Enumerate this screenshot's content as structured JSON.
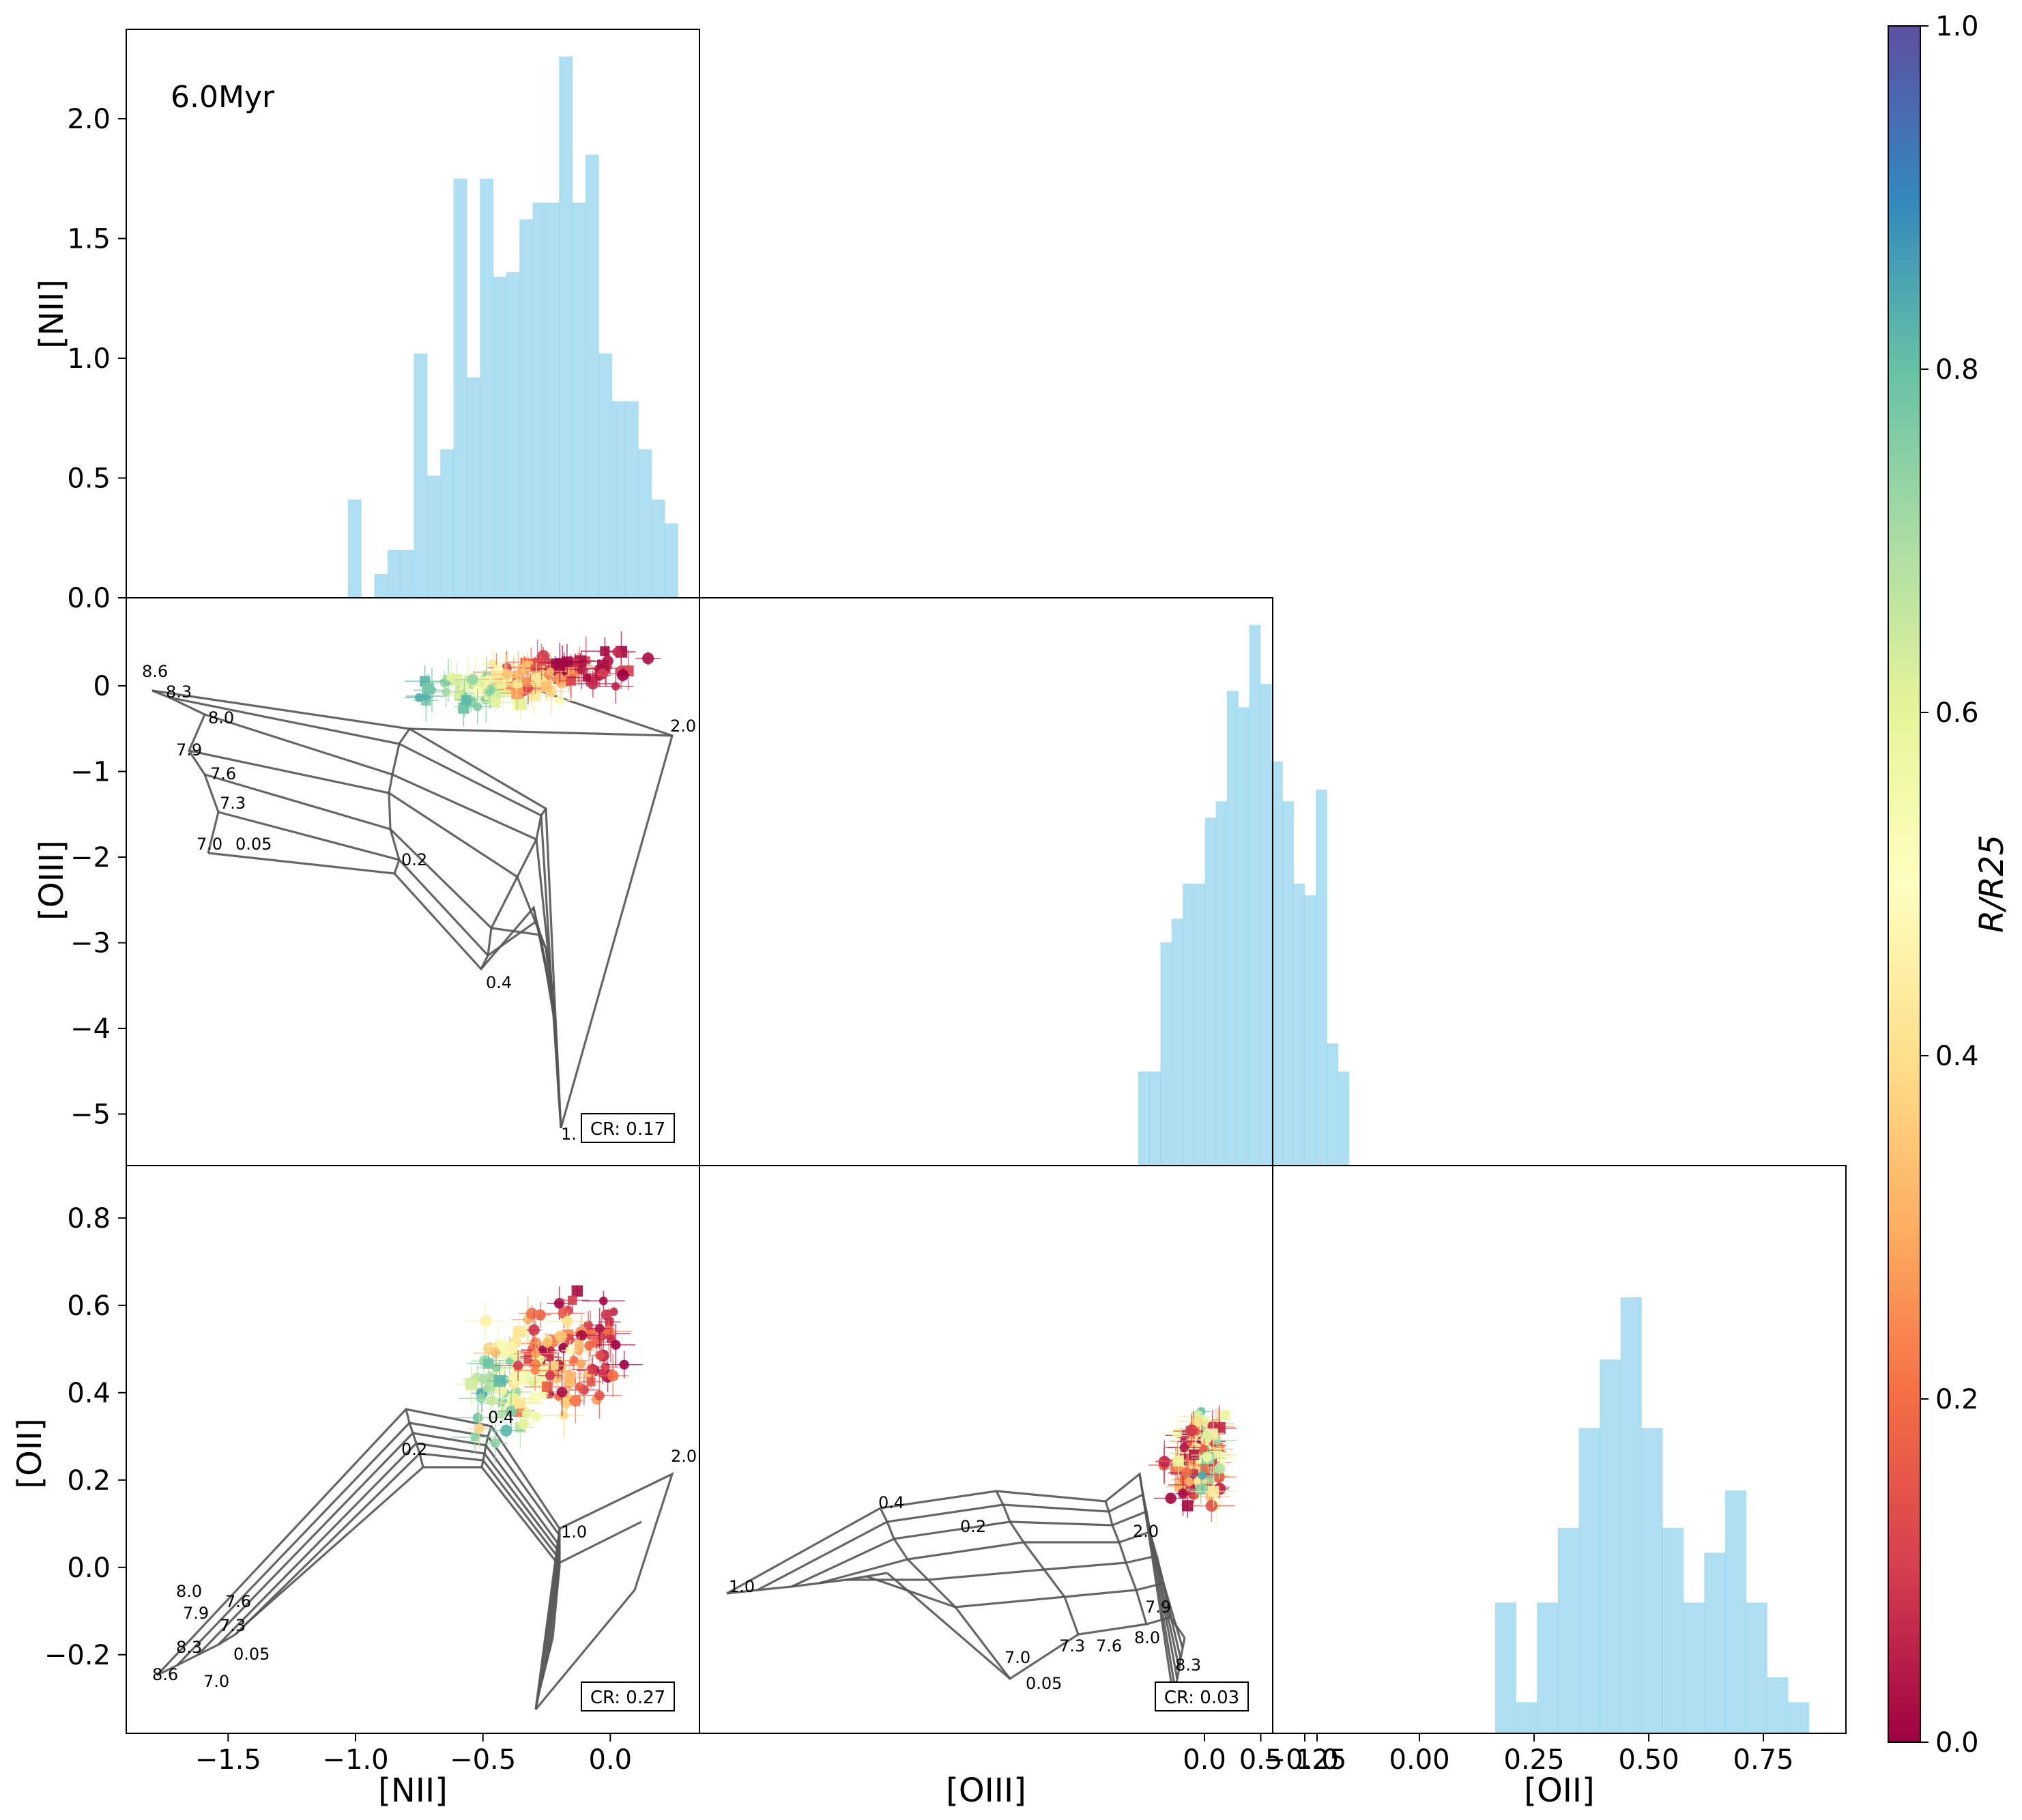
{
  "colorbar": {
    "label": "R/R25",
    "ticks": [
      "0.0",
      "0.2",
      "0.4",
      "0.6",
      "0.8",
      "1.0"
    ],
    "colors": [
      "#9e0142",
      "#d53e4f",
      "#f46d43",
      "#fdae61",
      "#fee08b",
      "#ffffbf",
      "#e6f598",
      "#abdda4",
      "#66c2a5",
      "#3288bd",
      "#5e4fa2"
    ]
  },
  "labels": {
    "age": "6.0Myr",
    "nii": "[NII]",
    "oiii": "[OIII]",
    "oii": "[OII]"
  },
  "chart_data": [
    {
      "id": "hist-nii",
      "type": "bar",
      "ylabel": "[NII]",
      "ylim": [
        0,
        2.3
      ],
      "yticks": [
        "0.0",
        "0.5",
        "1.0",
        "1.5",
        "2.0"
      ],
      "annotation": "6.0Myr",
      "bin_start": -1.03,
      "bin_width": 0.0518,
      "values": [
        0.41,
        0,
        0.1,
        0.2,
        0.2,
        1.02,
        0.51,
        0.62,
        1.75,
        0.92,
        1.75,
        1.34,
        1.36,
        1.58,
        1.65,
        1.65,
        2.26,
        1.65,
        1.85,
        1.02,
        0.82,
        0.82,
        0.62,
        0.41,
        0.31
      ]
    },
    {
      "id": "scatter-nii-oiii",
      "type": "scatter",
      "ylabel": "[OIII]",
      "ylim": [
        -5.4,
        0.5
      ],
      "yticks": [
        "0",
        "−1",
        "−2",
        "−3",
        "−4",
        "−5"
      ],
      "cr": "CR: 0.17",
      "grid_labels": [
        "8.6",
        "8.3",
        "8.0",
        "7.9",
        "7.6",
        "7.3",
        "7.0",
        "0.05",
        "0.2",
        "0.4",
        "1.",
        "2.0"
      ]
    },
    {
      "id": "hist-oiii",
      "type": "bar",
      "ylim": [
        0,
        2.3
      ],
      "bin_start": -0.33,
      "bin_width": 0.0625,
      "values": [
        0.4,
        0.4,
        0.95,
        1.05,
        1.2,
        1.2,
        1.48,
        1.55,
        2.02,
        1.95,
        2.3,
        2.05,
        1.72,
        1.55,
        1.2,
        1.15,
        1.6,
        0.52,
        0.4
      ]
    },
    {
      "id": "scatter-nii-oii",
      "type": "scatter",
      "ylabel": "[OII]",
      "xlabel": "[NII]",
      "xlim": [
        -1.9,
        0.35
      ],
      "ylim": [
        -0.38,
        0.92
      ],
      "xticks": [
        "−1.5",
        "−1.0",
        "−0.5",
        "0.0"
      ],
      "yticks": [
        "−0.2",
        "0.0",
        "0.2",
        "0.4",
        "0.6",
        "0.8"
      ],
      "cr": "CR: 0.27",
      "grid_labels": [
        "8.0",
        "7.6",
        "7.9",
        "7.3",
        "8.3",
        "0.05",
        "8.6",
        "7.0",
        "0.2",
        "0.4",
        "1.0",
        "2.0"
      ]
    },
    {
      "id": "scatter-oiii-oii",
      "type": "scatter",
      "xlabel": "[OIII]",
      "xticks": [
        "0.0",
        "0.5",
        "1.0"
      ],
      "cr": "CR: 0.03",
      "grid_labels": [
        "0.4",
        "0.2",
        "1.0",
        "2.0",
        "7.9",
        "8.0",
        "7.6",
        "7.3",
        "7.0",
        "0.05",
        "8.3"
      ]
    },
    {
      "id": "hist-oii",
      "type": "bar",
      "xlabel": "[OII]",
      "xlim": [
        -0.32,
        0.93
      ],
      "xticks": [
        "−0.25",
        "0.00",
        "0.25",
        "0.50",
        "0.75"
      ],
      "bin_start": 0.165,
      "bin_width": 0.0456,
      "values": [
        0.21,
        0.05,
        0.21,
        0.33,
        0.49,
        0.6,
        0.7,
        0.49,
        0.33,
        0.21,
        0.29,
        0.39,
        0.21,
        0.09,
        0.05
      ]
    }
  ]
}
